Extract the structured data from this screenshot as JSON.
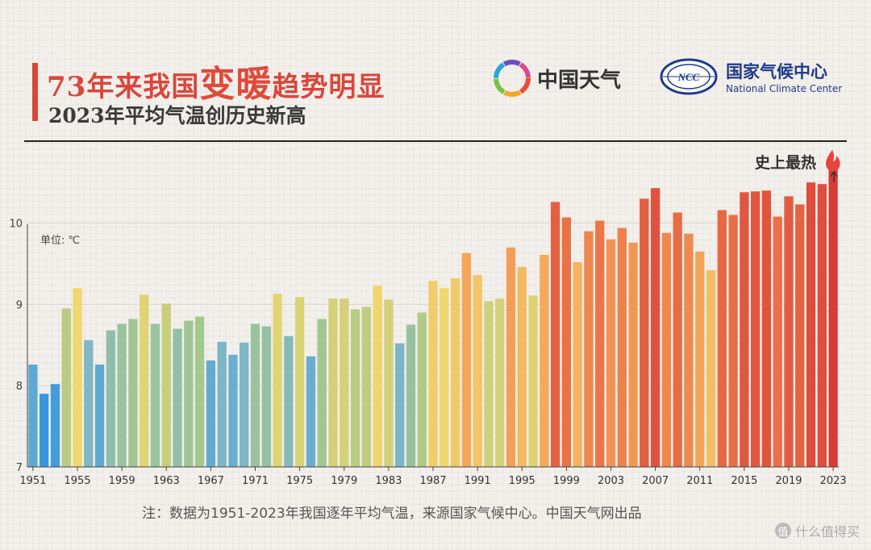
{
  "header": {
    "title_part1": "73年来我国",
    "title_big1": "变",
    "title_big2": "暖",
    "title_part2": "趋势明显",
    "subtitle": "2023年平均气温创历史新高"
  },
  "logos": {
    "weather_name": "中国天气",
    "ncc_zh": "国家气候中心",
    "ncc_en": "National Climate Center",
    "ncc_badge": "NCC"
  },
  "colors": {
    "title_red": "#d9473b",
    "ncc_blue": "#1f3a8a"
  },
  "chart_data": {
    "type": "bar",
    "unit_label": "单位: ℃",
    "annotation": "史上最热",
    "ylim": [
      7,
      10.8
    ],
    "yticks": [
      7,
      8,
      9,
      10
    ],
    "xtick_labels": [
      "1951",
      "1955",
      "1959",
      "1963",
      "1967",
      "1971",
      "1975",
      "1979",
      "1983",
      "1987",
      "1991",
      "1995",
      "1999",
      "2003",
      "2007",
      "2011",
      "2015",
      "2019",
      "2023"
    ],
    "x": [
      1951,
      1952,
      1953,
      1954,
      1955,
      1956,
      1957,
      1958,
      1959,
      1960,
      1961,
      1962,
      1963,
      1964,
      1965,
      1966,
      1967,
      1968,
      1969,
      1970,
      1971,
      1972,
      1973,
      1974,
      1975,
      1976,
      1977,
      1978,
      1979,
      1980,
      1981,
      1982,
      1983,
      1984,
      1985,
      1986,
      1987,
      1988,
      1989,
      1990,
      1991,
      1992,
      1993,
      1994,
      1995,
      1996,
      1997,
      1998,
      1999,
      2000,
      2001,
      2002,
      2003,
      2004,
      2005,
      2006,
      2007,
      2008,
      2009,
      2010,
      2011,
      2012,
      2013,
      2014,
      2015,
      2016,
      2017,
      2018,
      2019,
      2020,
      2021,
      2022,
      2023
    ],
    "values": [
      8.26,
      7.9,
      8.02,
      8.95,
      9.2,
      8.56,
      8.26,
      8.68,
      8.76,
      8.82,
      9.12,
      8.76,
      9.01,
      8.7,
      8.8,
      8.85,
      8.31,
      8.54,
      8.38,
      8.53,
      8.76,
      8.73,
      9.13,
      8.61,
      9.09,
      8.36,
      8.82,
      9.07,
      9.07,
      8.94,
      8.97,
      9.23,
      9.06,
      8.52,
      8.75,
      8.9,
      9.29,
      9.2,
      9.32,
      9.63,
      9.36,
      9.04,
      9.07,
      9.7,
      9.46,
      9.11,
      9.61,
      10.26,
      10.07,
      9.52,
      9.9,
      10.03,
      9.8,
      9.94,
      9.76,
      10.3,
      10.43,
      9.88,
      10.13,
      9.87,
      9.65,
      9.42,
      10.16,
      10.1,
      10.38,
      10.39,
      10.4,
      10.08,
      10.33,
      10.23,
      10.5,
      10.48,
      10.71
    ],
    "grid": true,
    "legend": "none"
  },
  "footnote": "注：数据为1951-2023年我国逐年平均气温，来源国家气候中心。中国天气网出品",
  "watermark": "什么值得买",
  "watermark_badge": "值"
}
